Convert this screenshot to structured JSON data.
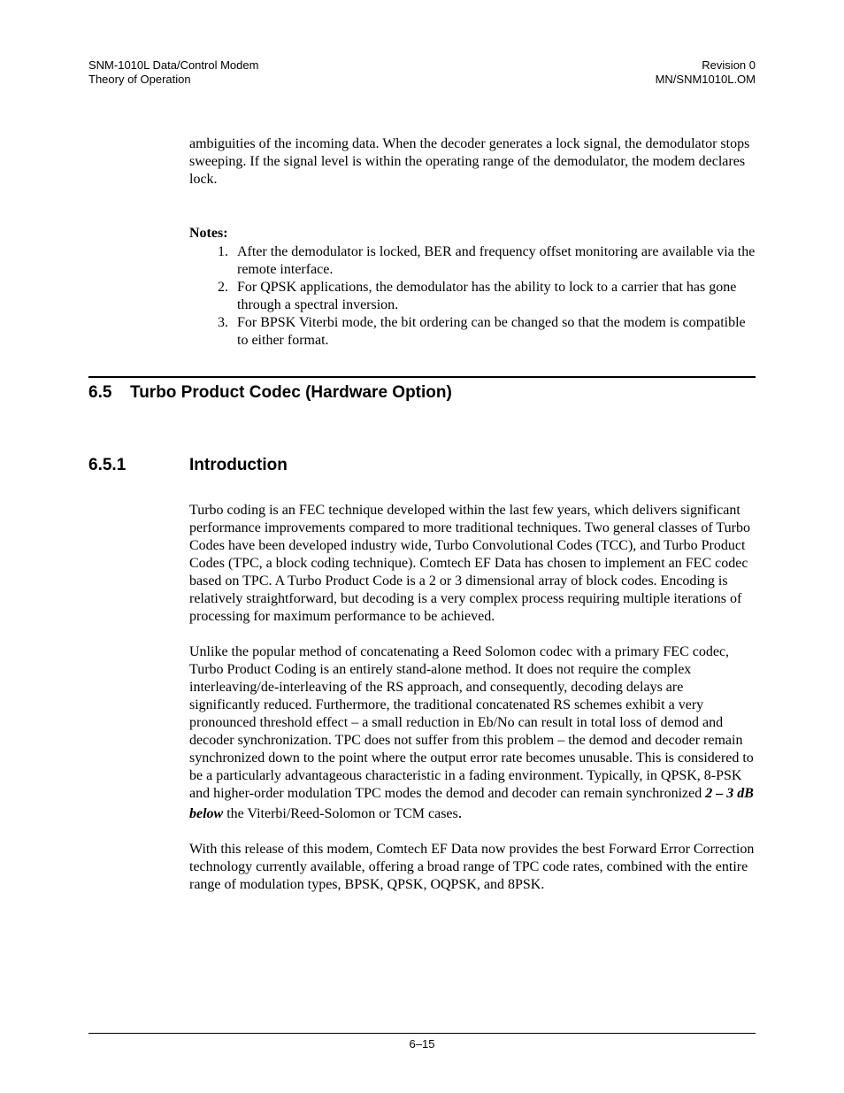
{
  "header": {
    "left_line1": "SNM-1010L Data/Control Modem",
    "left_line2": "Theory of Operation",
    "right_line1": "Revision 0",
    "right_line2": "MN/SNM1010L.OM"
  },
  "lead_paragraph": "ambiguities of the incoming data. When the decoder generates a lock signal, the demodulator stops sweeping. If the signal level is within the operating range of the demodulator, the modem declares lock.",
  "notes_label": "Notes:",
  "notes": [
    "After the demodulator is locked, BER and frequency offset monitoring are available via the remote interface.",
    "For QPSK applications, the demodulator has the ability to lock to a carrier that has gone through a spectral inversion.",
    "For BPSK Viterbi mode, the bit ordering can be changed so that the modem is compatible to either format."
  ],
  "section": {
    "number": "6.5",
    "title": "Turbo Product Codec (Hardware Option)"
  },
  "subsection": {
    "number": "6.5.1",
    "title": "Introduction"
  },
  "para1": "Turbo coding is an FEC technique developed within the last few years, which delivers significant performance improvements compared to more traditional techniques. Two general classes of Turbo Codes have been developed industry wide, Turbo Convolutional Codes (TCC), and Turbo Product Codes (TPC, a block coding technique). Comtech EF Data has chosen to implement an FEC codec based on TPC. A Turbo Product Code is a 2 or 3 dimensional array of block codes. Encoding is relatively straightforward, but decoding is a very complex process requiring multiple iterations of processing for maximum performance to be achieved.",
  "para2_a": "Unlike the popular method of concatenating a Reed Solomon codec with a primary FEC codec, Turbo Product Coding is an entirely stand-alone method. It does not require the complex interleaving/de-interleaving of the RS approach, and consequently, decoding delays are significantly reduced. Furthermore, the traditional concatenated RS schemes exhibit a very pronounced threshold effect – a small reduction in Eb/No can result in total loss of demod and decoder synchronization. TPC does not suffer from this problem – the demod and decoder remain synchronized down to the point where the output error rate becomes unusable. This is considered to be a particularly advantageous characteristic in a fading environment. Typically, in QPSK, 8-PSK and higher-order modulation TPC modes the demod and decoder can remain synchronized ",
  "para2_emph": "2 – 3 dB below",
  "para2_b": " the Viterbi/Reed-Solomon or TCM cases",
  "para2_dot": ".",
  "para3": "With this release of this modem, Comtech EF Data now provides the best Forward Error Correction technology currently available, offering a broad range of TPC code rates, combined with the entire range of modulation types, BPSK, QPSK, OQPSK, and 8PSK.",
  "footer": {
    "page": "6–15"
  }
}
